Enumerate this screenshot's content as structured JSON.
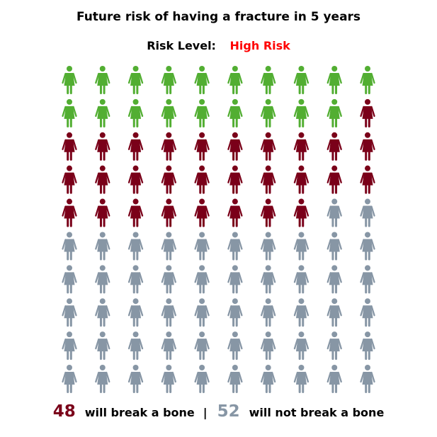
{
  "chart_data": {
    "type": "pictogram",
    "title": "Future risk of having a fracture in 5 years",
    "risk_label": "Risk Level:",
    "risk_value": "High Risk",
    "rows": 10,
    "columns": 10,
    "categories": [
      {
        "key": "previous",
        "count": 19,
        "color": "#52ae32"
      },
      {
        "key": "break",
        "count": 29,
        "color": "#7a0019"
      },
      {
        "key": "no_break",
        "count": 52,
        "color": "#8796a5"
      }
    ],
    "summary": {
      "break_count": "48",
      "break_text": "will break a bone",
      "separator": "|",
      "no_break_count": "52",
      "no_break_text": "will not break a bone"
    }
  },
  "colors": {
    "risk_value": "#ff0000",
    "break": "#7a0019",
    "no_break": "#8796a5",
    "previous": "#52ae32"
  },
  "icon": "woman-figure-icon"
}
